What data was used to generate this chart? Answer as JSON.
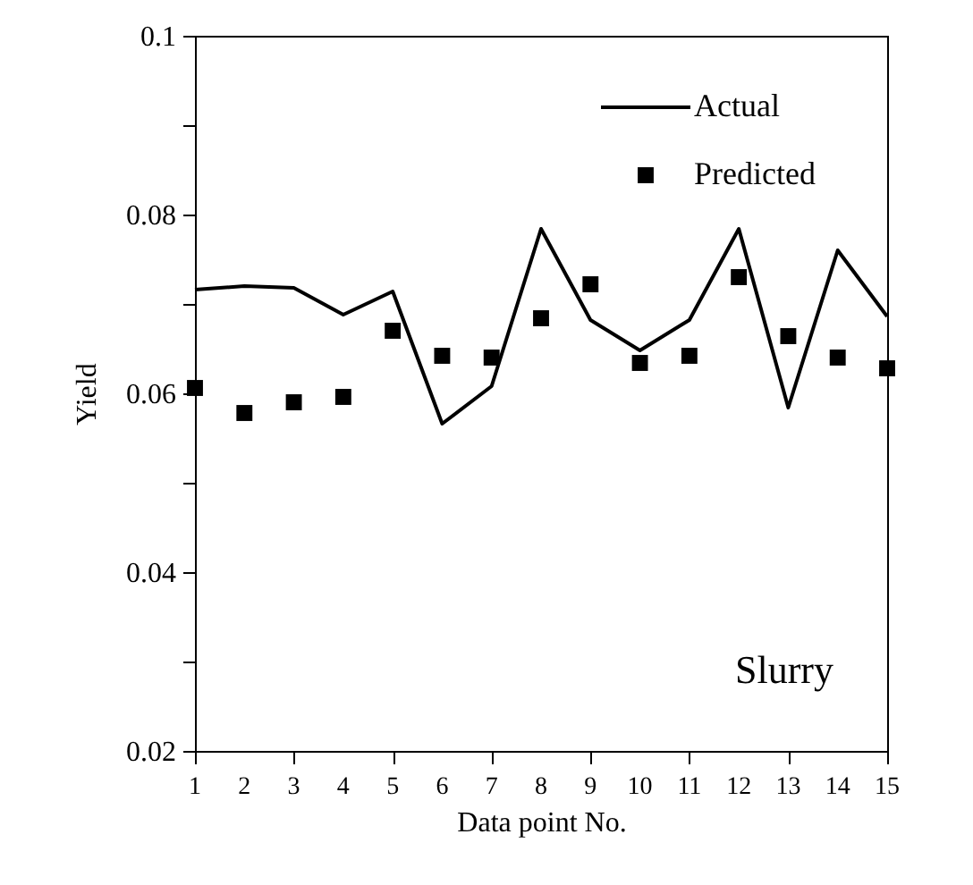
{
  "chart_data": {
    "type": "line",
    "xlabel": "Data point No.",
    "ylabel": "Yield",
    "x": [
      1,
      2,
      3,
      4,
      5,
      6,
      7,
      8,
      9,
      10,
      11,
      12,
      13,
      14,
      15
    ],
    "series": [
      {
        "name": "Actual",
        "color": "#000000",
        "marker": "none",
        "line_style": "solid",
        "values": [
          0.0716,
          0.072,
          0.0718,
          0.0688,
          0.0714,
          0.0566,
          0.0608,
          0.0784,
          0.0682,
          0.0648,
          0.0682,
          0.0784,
          0.0584,
          0.076,
          0.0686
        ]
      },
      {
        "name": "Predicted",
        "type": "scatter",
        "color": "#000000",
        "marker": "square",
        "values": [
          0.0606,
          0.0578,
          0.059,
          0.0596,
          0.067,
          0.0642,
          0.064,
          0.0684,
          0.0722,
          0.0634,
          0.0642,
          0.073,
          0.0664,
          0.064,
          0.0628
        ]
      }
    ],
    "xlim": [
      1,
      15
    ],
    "xticks": [
      1,
      2,
      3,
      4,
      5,
      6,
      7,
      8,
      9,
      10,
      11,
      12,
      13,
      14,
      15
    ],
    "ylim": [
      0.02,
      0.1
    ],
    "yticks": [
      0.02,
      {
        "value": 0.03,
        "label": null
      },
      0.04,
      {
        "value": 0.05,
        "label": null
      },
      0.06,
      {
        "value": 0.07,
        "label": null
      },
      0.08,
      {
        "value": 0.09,
        "label": null
      },
      0.1
    ],
    "annotations": [
      "Slurry"
    ],
    "legend": "top right",
    "grid": false
  }
}
